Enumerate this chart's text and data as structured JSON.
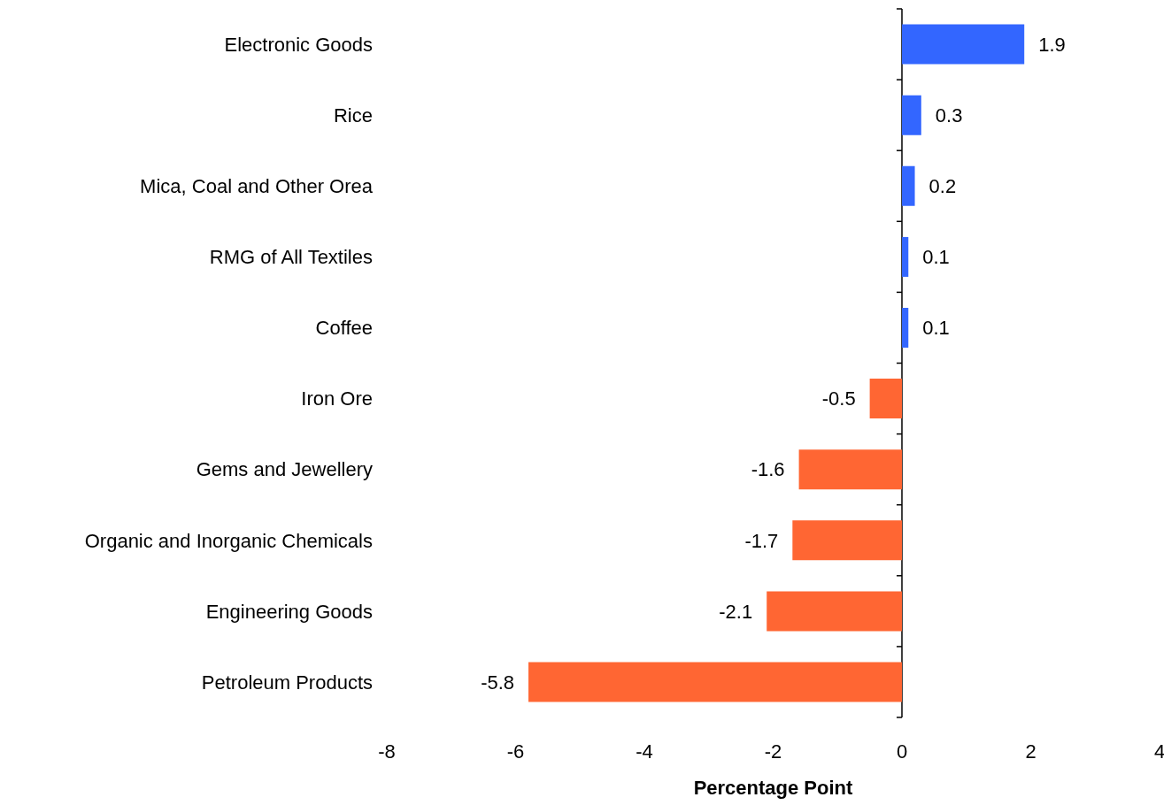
{
  "chart_data": {
    "type": "bar",
    "orientation": "horizontal",
    "xlabel": "Percentage Point",
    "categories": [
      "Electronic Goods",
      "Rice",
      "Mica, Coal and Other Orea",
      "RMG of All Textiles",
      "Coffee",
      "Iron Ore",
      "Gems and Jewellery",
      "Organic and Inorganic Chemicals",
      "Engineering Goods",
      "Petroleum Products"
    ],
    "values": [
      1.9,
      0.3,
      0.2,
      0.1,
      0.1,
      -0.5,
      -1.6,
      -1.7,
      -2.1,
      -5.8
    ],
    "colors": [
      "#3366ff",
      "#3366ff",
      "#3366ff",
      "#3366ff",
      "#3366ff",
      "#ff6633",
      "#ff6633",
      "#ff6633",
      "#ff6633",
      "#ff6633"
    ],
    "xlim": [
      -8,
      4
    ],
    "xticks": [
      -8,
      -6,
      -4,
      -2,
      0,
      2,
      4
    ],
    "data_labels": true
  }
}
